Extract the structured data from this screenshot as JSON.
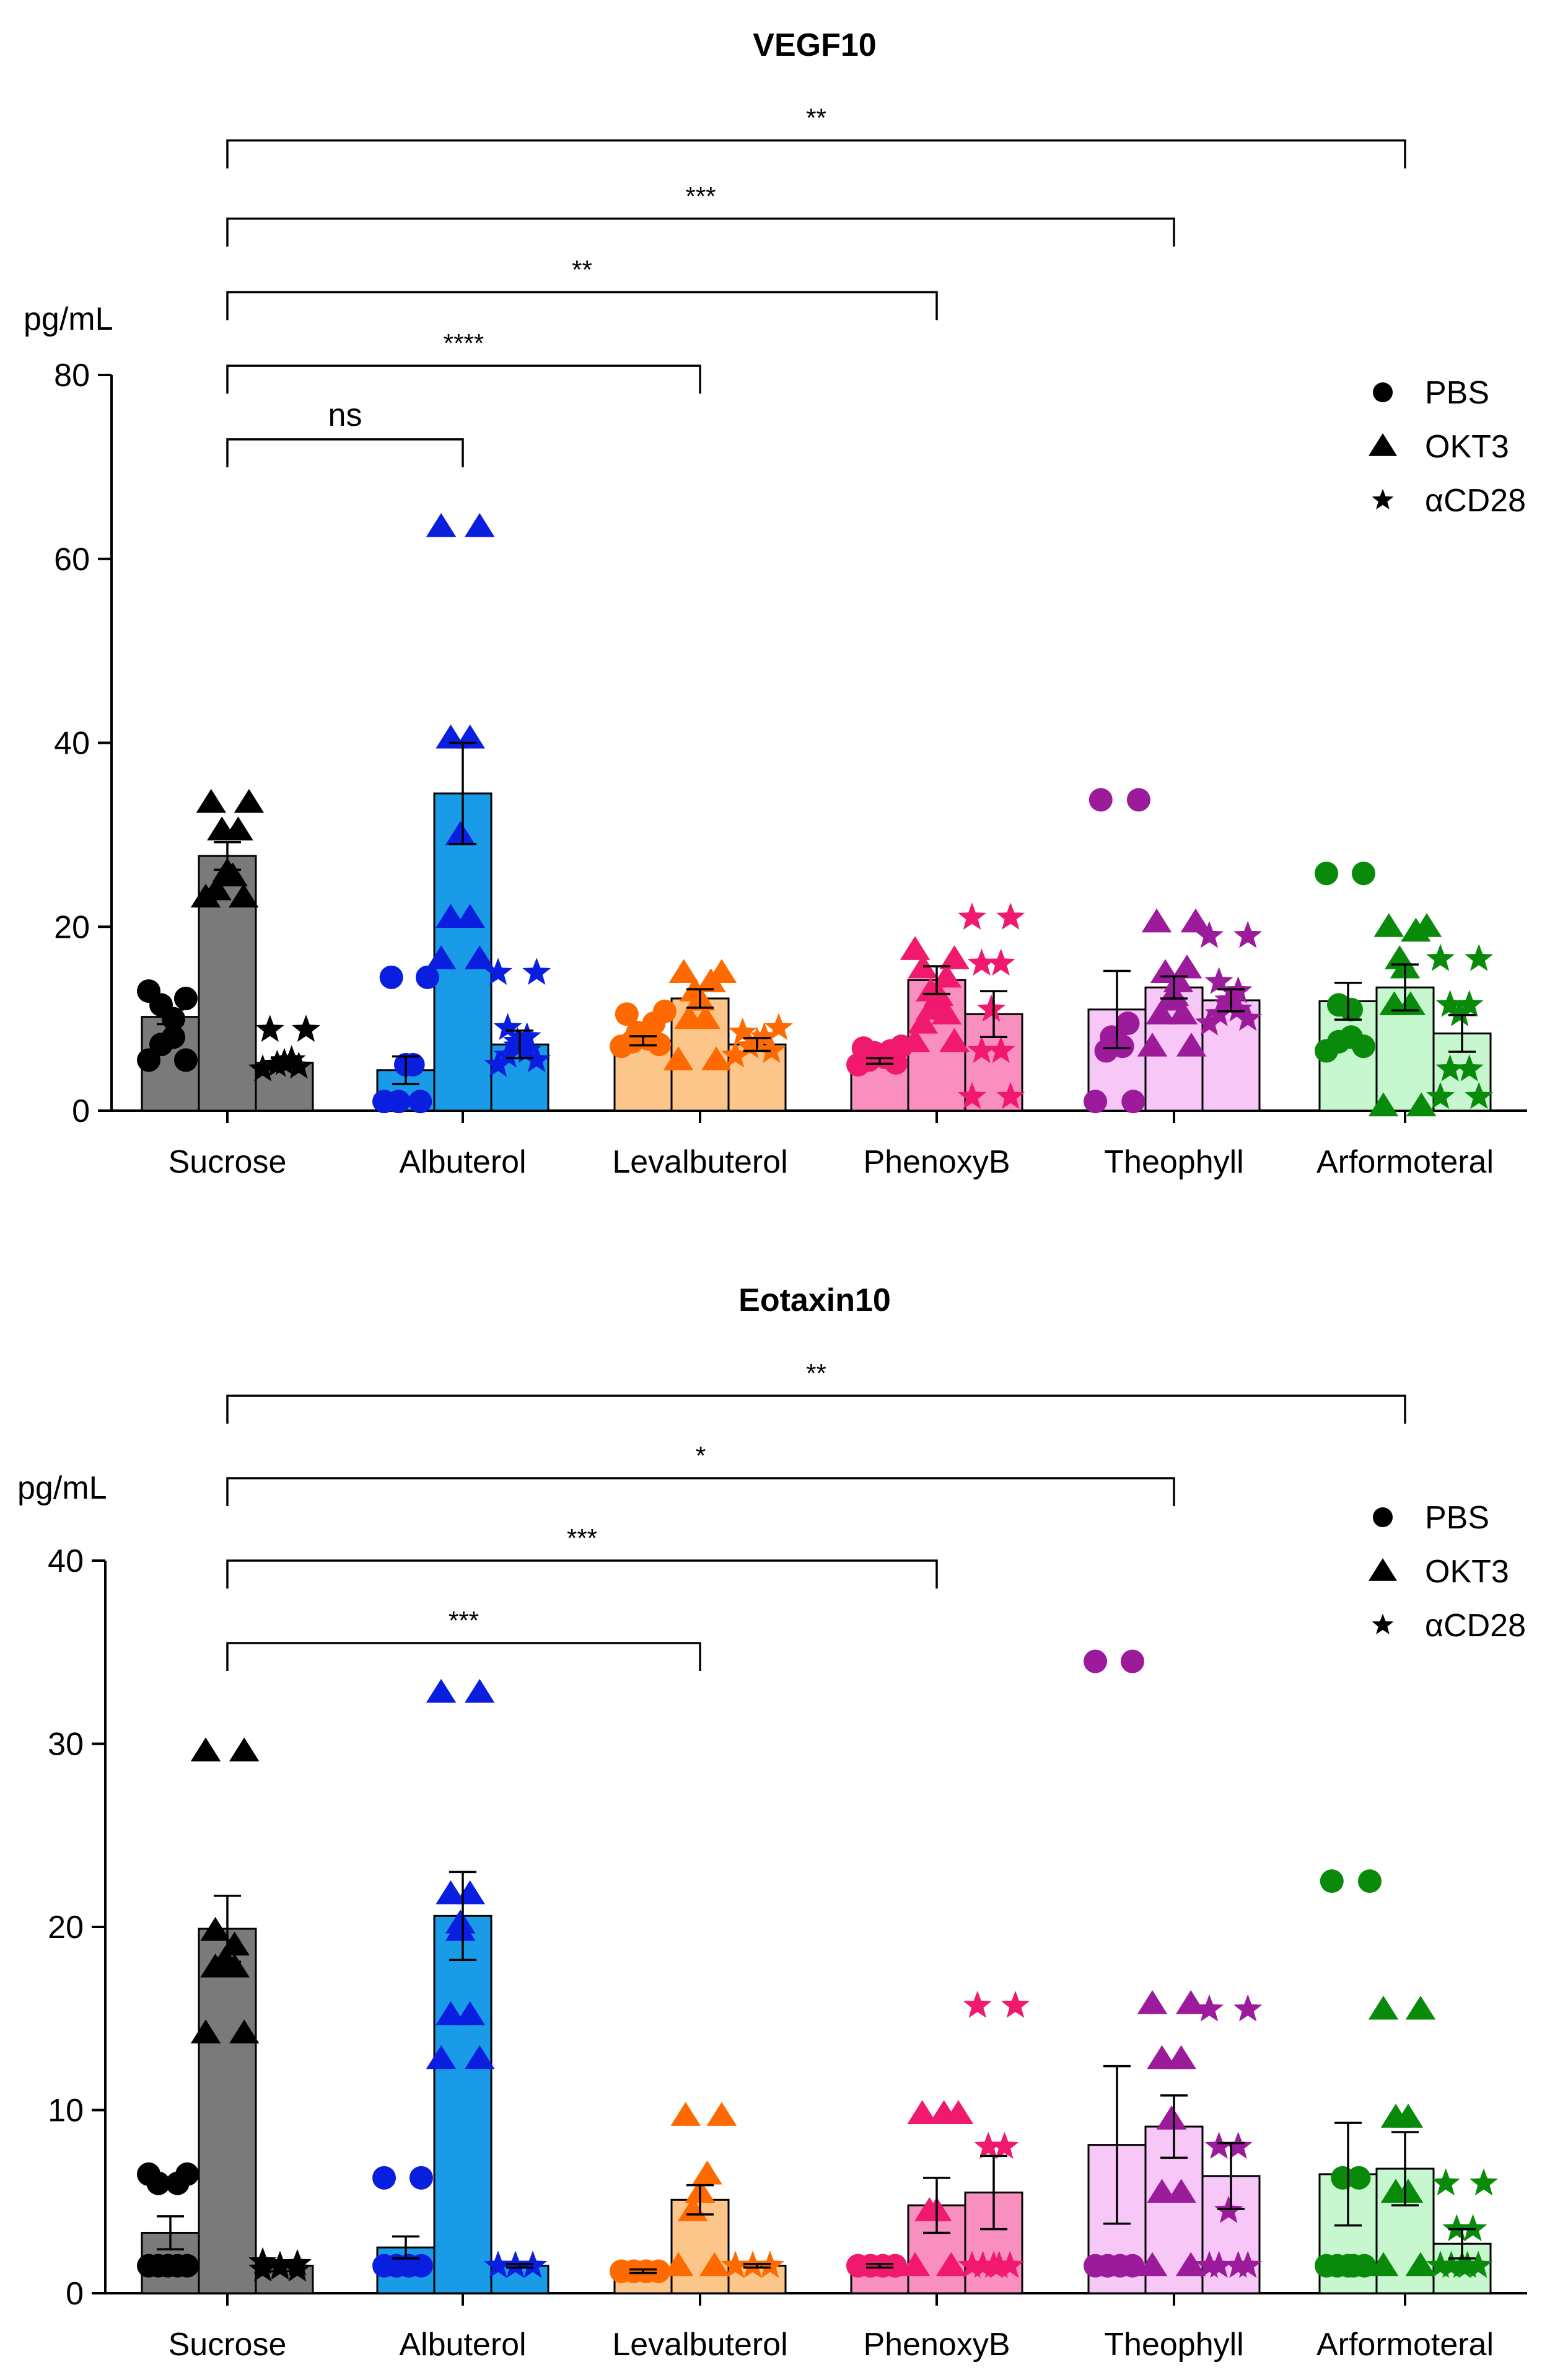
{
  "chart_data": [
    {
      "type": "bar",
      "title": "VEGF10",
      "ylabel": "pg/mL",
      "xlabel": "",
      "ylim": [
        0,
        80
      ],
      "yticks": [
        0,
        20,
        40,
        60,
        80
      ],
      "grid": false,
      "legend_position": "top-right",
      "categories": [
        "Sucrose",
        "Albuterol",
        "Levalbuterol",
        "PhenoxyB",
        "Theophyll",
        "Arformoteral"
      ],
      "group_colors": [
        "#7a7a7a",
        "#1a9be8",
        "#fcc58a",
        "#f88fbf",
        "#f7c8f7",
        "#c6f7cf"
      ],
      "marker_colors": [
        "#000000",
        "#0a1ee0",
        "#ff6a00",
        "#f0196e",
        "#9b1b9b",
        "#0a8a0a"
      ],
      "series": [
        {
          "name": "PBS",
          "marker": "circle",
          "values": [
            10.2,
            4.4,
            7.6,
            5.4,
            11.0,
            11.9
          ],
          "errors": [
            0.8,
            1.5,
            0.5,
            0.3,
            4.2,
            2.0
          ],
          "points": [
            [
              5.5,
              5.5,
              7.2,
              8.0,
              10.0,
              11.5,
              12.2,
              13.0
            ],
            [
              1.0,
              1.0,
              1.0,
              5.0,
              5.0,
              14.5,
              14.5
            ],
            [
              7.0,
              7.2,
              7.5,
              7.8,
              8.0,
              8.5,
              9.5,
              10.5,
              10.8
            ],
            [
              5.0,
              5.2,
              5.5,
              5.8,
              6.0,
              6.3,
              6.5,
              6.8,
              7.0
            ],
            [
              1.0,
              1.0,
              6.5,
              7.0,
              7.5,
              8.0,
              9.5,
              33.8,
              33.8
            ],
            [
              6.5,
              7.0,
              7.5,
              8.0,
              11.0,
              11.5,
              25.8,
              25.8
            ]
          ]
        },
        {
          "name": "OKT3",
          "marker": "triangle",
          "values": [
            27.7,
            34.5,
            12.2,
            14.2,
            13.4,
            13.4
          ],
          "errors": [
            1.5,
            5.5,
            1.0,
            1.5,
            1.2,
            2.5
          ],
          "points": [
            [
              23.2,
              23.2,
              24.0,
              25.5,
              26.0,
              30.5,
              30.5,
              33.5,
              33.5
            ],
            [
              16.5,
              16.5,
              21.0,
              21.0,
              30.0,
              30.0,
              40.5,
              40.5,
              63.5,
              63.5
            ],
            [
              5.5,
              5.5,
              10.0,
              10.0,
              12.0,
              13.0,
              14.0,
              15.0,
              15.0
            ],
            [
              7.5,
              7.5,
              9.5,
              10.5,
              11.0,
              11.8,
              12.5,
              13.0,
              14.5,
              15.5,
              16.5,
              17.5
            ],
            [
              7.0,
              7.0,
              10.5,
              10.5,
              12.0,
              12.5,
              14.0,
              15.0,
              15.5,
              20.5,
              20.5
            ],
            [
              0.5,
              0.5,
              11.5,
              11.5,
              15.5,
              16.5,
              19.5,
              20.0,
              20.0
            ]
          ]
        },
        {
          "name": "αCD28",
          "marker": "star",
          "values": [
            5.2,
            7.2,
            7.2,
            10.5,
            12.0,
            8.4
          ],
          "errors": [
            0.6,
            1.5,
            0.7,
            2.5,
            1.2,
            2.0
          ],
          "points": [
            [
              4.5,
              4.8,
              5.0,
              5.2,
              5.5,
              8.8,
              8.8
            ],
            [
              5.0,
              5.5,
              6.0,
              6.5,
              7.0,
              7.5,
              8.0,
              9.0,
              15.0,
              15.0
            ],
            [
              6.0,
              6.5,
              7.0,
              7.5,
              8.0,
              8.5,
              9.0
            ],
            [
              1.5,
              1.5,
              6.5,
              6.5,
              11.0,
              11.0,
              16.0,
              16.0,
              21.0,
              21.0
            ],
            [
              9.5,
              10.0,
              10.5,
              11.0,
              11.5,
              12.0,
              13.0,
              14.0,
              19.0,
              19.0
            ],
            [
              1.5,
              1.5,
              4.5,
              4.5,
              10.5,
              10.5,
              11.5,
              11.5,
              16.5,
              16.5
            ]
          ]
        }
      ],
      "significance": [
        {
          "label": "ns",
          "from": "Sucrose",
          "to": "Albuterol",
          "y": 73
        },
        {
          "label": "****",
          "from": "Sucrose",
          "to": "Levalbuterol",
          "y": 81
        },
        {
          "label": "**",
          "from": "Sucrose",
          "to": "PhenoxyB",
          "y": 89
        },
        {
          "label": "***",
          "from": "Sucrose",
          "to": "Theophyll",
          "y": 97
        },
        {
          "label": "**",
          "from": "Sucrose",
          "to": "Arformoteral",
          "y": 105.5
        }
      ]
    },
    {
      "type": "bar",
      "title": "Eotaxin10",
      "ylabel": "pg/mL",
      "xlabel": "",
      "ylim": [
        0,
        40
      ],
      "yticks": [
        0,
        10,
        20,
        30,
        40
      ],
      "grid": false,
      "legend_position": "top-right",
      "categories": [
        "Sucrose",
        "Albuterol",
        "Levalbuterol",
        "PhenoxyB",
        "Theophyll",
        "Arformoteral"
      ],
      "group_colors": [
        "#7a7a7a",
        "#1a9be8",
        "#fcc58a",
        "#f88fbf",
        "#f7c8f7",
        "#c6f7cf"
      ],
      "marker_colors": [
        "#000000",
        "#0a1ee0",
        "#ff6a00",
        "#f0196e",
        "#9b1b9b",
        "#0a8a0a"
      ],
      "series": [
        {
          "name": "PBS",
          "marker": "circle",
          "values": [
            3.3,
            2.5,
            1.2,
            1.5,
            8.1,
            6.5
          ],
          "errors": [
            0.9,
            0.6,
            0.1,
            0.1,
            4.3,
            2.8
          ],
          "points": [
            [
              1.5,
              1.5,
              1.5,
              1.5,
              1.5,
              1.5,
              6.0,
              6.0,
              6.5,
              6.5
            ],
            [
              1.5,
              1.5,
              1.5,
              1.5,
              1.5,
              1.5,
              6.3,
              6.3
            ],
            [
              1.2,
              1.2,
              1.2,
              1.2,
              1.2,
              1.2,
              1.2,
              1.2
            ],
            [
              1.5,
              1.5,
              1.5,
              1.5,
              1.5,
              1.5,
              1.5,
              1.5
            ],
            [
              1.5,
              1.5,
              1.5,
              1.5,
              1.5,
              1.5,
              34.5,
              34.5
            ],
            [
              1.5,
              1.5,
              1.5,
              1.5,
              1.5,
              6.3,
              6.3,
              22.5,
              22.5
            ]
          ]
        },
        {
          "name": "OKT3",
          "marker": "triangle",
          "values": [
            19.9,
            20.6,
            5.1,
            4.8,
            9.1,
            6.8
          ],
          "errors": [
            1.8,
            2.4,
            0.8,
            1.5,
            1.7,
            2.0
          ],
          "points": [
            [
              14.2,
              14.2,
              17.8,
              17.8,
              17.8,
              18.2,
              19.0,
              19.8,
              29.6,
              29.6
            ],
            [
              12.8,
              12.8,
              15.2,
              15.2,
              19.8,
              20.2,
              21.8,
              21.8,
              32.8,
              32.8
            ],
            [
              1.5,
              1.5,
              4.5,
              5.5,
              6.5,
              9.7,
              9.7
            ],
            [
              1.5,
              1.5,
              4.5,
              4.5,
              9.8,
              9.8,
              9.8
            ],
            [
              1.5,
              1.5,
              5.5,
              5.5,
              9.5,
              9.5,
              12.8,
              12.8,
              15.8,
              15.8
            ],
            [
              1.5,
              1.5,
              5.5,
              5.5,
              9.6,
              9.6,
              15.5,
              15.5
            ]
          ]
        },
        {
          "name": "αCD28",
          "marker": "star",
          "values": [
            1.5,
            1.5,
            1.5,
            5.5,
            6.4,
            2.7
          ],
          "errors": [
            0.3,
            0.1,
            0.1,
            2.0,
            1.8,
            0.8
          ],
          "points": [
            [
              1.3,
              1.3,
              1.4,
              1.5,
              1.6,
              1.7
            ],
            [
              1.5,
              1.5,
              1.5,
              1.5,
              1.5,
              1.5
            ],
            [
              1.5,
              1.5,
              1.5,
              1.5,
              1.5,
              1.5
            ],
            [
              1.5,
              1.5,
              1.5,
              1.5,
              1.5,
              8.0,
              8.0,
              15.7,
              15.7
            ],
            [
              1.5,
              1.5,
              1.5,
              1.5,
              4.5,
              4.5,
              8.0,
              8.0,
              15.5,
              15.5
            ],
            [
              1.5,
              1.5,
              1.5,
              1.5,
              1.5,
              3.5,
              3.5,
              6.0,
              6.0
            ]
          ]
        }
      ],
      "significance": [
        {
          "label": "***",
          "from": "Sucrose",
          "to": "Levalbuterol",
          "y": 35.5
        },
        {
          "label": "***",
          "from": "Sucrose",
          "to": "PhenoxyB",
          "y": 40
        },
        {
          "label": "*",
          "from": "Sucrose",
          "to": "Theophyll",
          "y": 44.5
        },
        {
          "label": "**",
          "from": "Sucrose",
          "to": "Arformoteral",
          "y": 49
        }
      ]
    }
  ]
}
